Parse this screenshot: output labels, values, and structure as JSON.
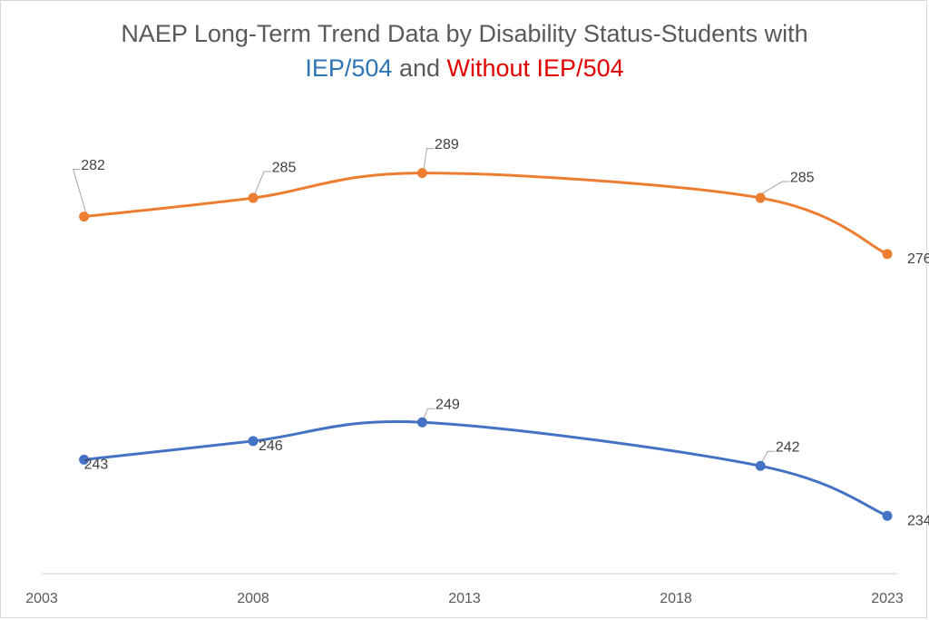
{
  "title": {
    "line1": "NAEP Long-Term Trend Data by Disability Status-Students with",
    "part_iep": "IEP/504",
    "part_and": " and ",
    "part_without": "Without IEP/504",
    "color_iep": "#2e75b6",
    "color_without": "#e00000"
  },
  "chart_data": {
    "type": "line",
    "title": "NAEP Long-Term Trend Data by Disability Status-Students with IEP/504 and Without IEP/504",
    "x": [
      2004,
      2008,
      2012,
      2020,
      2023
    ],
    "xlim": [
      2003,
      2023
    ],
    "x_ticks": [
      "2003",
      "2008",
      "2013",
      "2018",
      "2023"
    ],
    "ylim": [
      225,
      292
    ],
    "y_axis_visible": false,
    "grid": false,
    "legend": "none",
    "smooth": true,
    "series": [
      {
        "color": "#ed7d31",
        "values": [
          282,
          285,
          289,
          285,
          276
        ]
      },
      {
        "color": "#4472c4",
        "values": [
          243,
          246,
          249,
          242,
          234
        ]
      }
    ]
  }
}
